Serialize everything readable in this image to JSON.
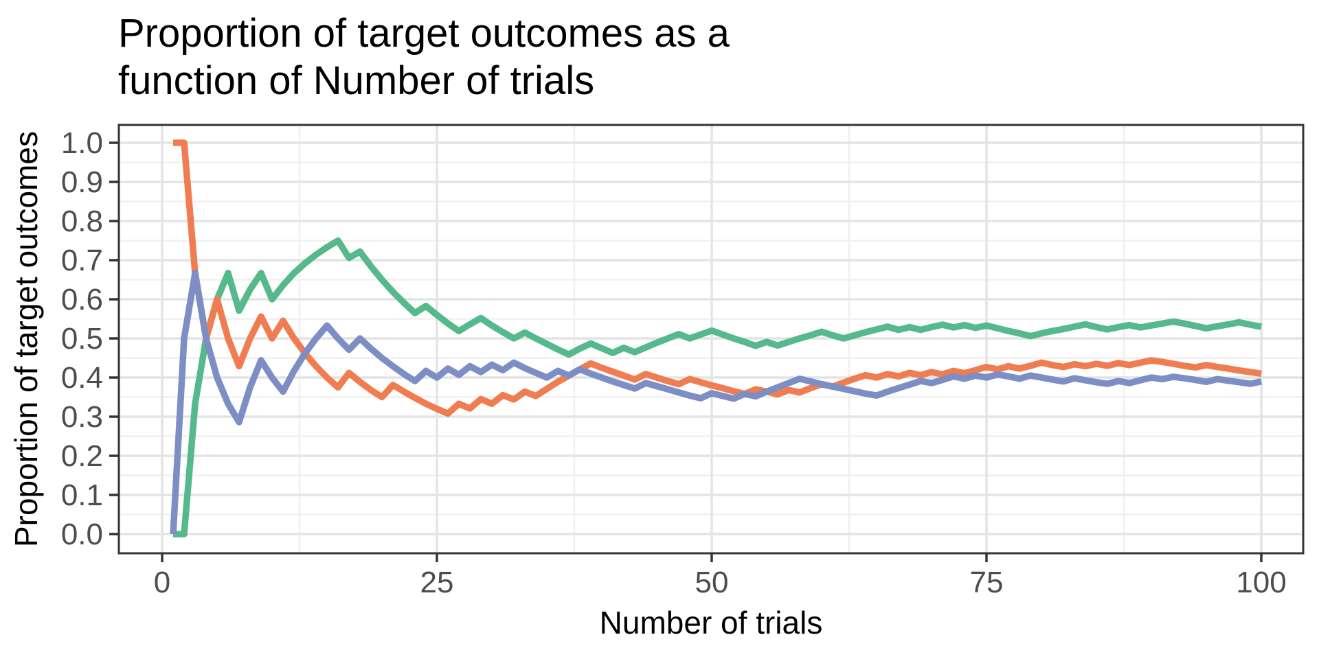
{
  "title": {
    "line1": "Proportion of target outcomes as a",
    "line2": "function of Number of trials"
  },
  "axes": {
    "x": {
      "label": "Number of trials",
      "tick_values": [
        0,
        25,
        50,
        75,
        100
      ],
      "tick_labels": [
        "0",
        "25",
        "50",
        "75",
        "100"
      ],
      "minor_ticks": [
        12.5,
        37.5,
        62.5,
        87.5
      ]
    },
    "y": {
      "label": "Proportion of target outcomes",
      "tick_values": [
        0.0,
        0.1,
        0.2,
        0.3,
        0.4,
        0.5,
        0.6,
        0.7,
        0.8,
        0.9,
        1.0
      ],
      "tick_labels": [
        "0.0",
        "0.1",
        "0.2",
        "0.3",
        "0.4",
        "0.5",
        "0.6",
        "0.7",
        "0.8",
        "0.9",
        "1.0"
      ],
      "minor_ticks": [
        0.05,
        0.15,
        0.25,
        0.35,
        0.45,
        0.55,
        0.65,
        0.75,
        0.85,
        0.95
      ]
    }
  },
  "chart_data": {
    "type": "line",
    "title": "Proportion of target outcomes as a function of Number of trials",
    "xlabel": "Number of trials",
    "ylabel": "Proportion of target outcomes",
    "xlim": [
      -4,
      104
    ],
    "ylim": [
      -0.05,
      1.05
    ],
    "grid": "major-and-minor",
    "legend": "none",
    "x": [
      1,
      2,
      3,
      4,
      5,
      6,
      7,
      8,
      9,
      10,
      11,
      12,
      13,
      14,
      15,
      16,
      17,
      18,
      19,
      20,
      21,
      22,
      23,
      24,
      25,
      26,
      27,
      28,
      29,
      30,
      31,
      32,
      33,
      34,
      35,
      36,
      37,
      38,
      39,
      40,
      41,
      42,
      43,
      44,
      45,
      46,
      47,
      48,
      49,
      50,
      51,
      52,
      53,
      54,
      55,
      56,
      57,
      58,
      59,
      60,
      61,
      62,
      63,
      64,
      65,
      66,
      67,
      68,
      69,
      70,
      71,
      72,
      73,
      74,
      75,
      76,
      77,
      78,
      79,
      80,
      81,
      82,
      83,
      84,
      85,
      86,
      87,
      88,
      89,
      90,
      91,
      92,
      93,
      94,
      95,
      96,
      97,
      98,
      99,
      100
    ],
    "series": [
      {
        "name": "green",
        "color": "#55B98C",
        "values": [
          0.0,
          0.0,
          0.333,
          0.5,
          0.6,
          0.667,
          0.571,
          0.625,
          0.667,
          0.6,
          0.636,
          0.667,
          0.692,
          0.714,
          0.733,
          0.75,
          0.706,
          0.722,
          0.684,
          0.65,
          0.619,
          0.591,
          0.565,
          0.583,
          0.56,
          0.538,
          0.519,
          0.536,
          0.552,
          0.533,
          0.516,
          0.5,
          0.515,
          0.5,
          0.486,
          0.472,
          0.459,
          0.474,
          0.487,
          0.475,
          0.463,
          0.476,
          0.465,
          0.477,
          0.489,
          0.5,
          0.511,
          0.5,
          0.51,
          0.52,
          0.51,
          0.5,
          0.491,
          0.481,
          0.491,
          0.482,
          0.491,
          0.5,
          0.508,
          0.517,
          0.508,
          0.5,
          0.508,
          0.516,
          0.523,
          0.53,
          0.522,
          0.529,
          0.522,
          0.529,
          0.535,
          0.528,
          0.534,
          0.527,
          0.533,
          0.526,
          0.519,
          0.513,
          0.506,
          0.513,
          0.519,
          0.524,
          0.53,
          0.536,
          0.529,
          0.523,
          0.529,
          0.534,
          0.528,
          0.533,
          0.538,
          0.543,
          0.538,
          0.532,
          0.526,
          0.531,
          0.536,
          0.541,
          0.535,
          0.53
        ]
      },
      {
        "name": "orange",
        "color": "#F07C52",
        "values": [
          1.0,
          1.0,
          0.667,
          0.5,
          0.6,
          0.5,
          0.429,
          0.5,
          0.556,
          0.5,
          0.545,
          0.5,
          0.462,
          0.429,
          0.4,
          0.375,
          0.412,
          0.389,
          0.368,
          0.35,
          0.381,
          0.364,
          0.348,
          0.333,
          0.32,
          0.308,
          0.333,
          0.321,
          0.345,
          0.333,
          0.355,
          0.344,
          0.364,
          0.353,
          0.371,
          0.389,
          0.405,
          0.421,
          0.436,
          0.425,
          0.415,
          0.405,
          0.395,
          0.409,
          0.4,
          0.391,
          0.383,
          0.396,
          0.388,
          0.38,
          0.373,
          0.365,
          0.358,
          0.37,
          0.364,
          0.357,
          0.368,
          0.362,
          0.373,
          0.383,
          0.377,
          0.387,
          0.397,
          0.406,
          0.4,
          0.409,
          0.403,
          0.412,
          0.406,
          0.414,
          0.408,
          0.417,
          0.411,
          0.419,
          0.427,
          0.421,
          0.429,
          0.423,
          0.43,
          0.438,
          0.432,
          0.427,
          0.434,
          0.429,
          0.435,
          0.43,
          0.437,
          0.432,
          0.438,
          0.444,
          0.44,
          0.435,
          0.43,
          0.426,
          0.432,
          0.427,
          0.423,
          0.418,
          0.414,
          0.41
        ]
      },
      {
        "name": "blue",
        "color": "#7D8EC4",
        "values": [
          0.0,
          0.5,
          0.667,
          0.5,
          0.4,
          0.333,
          0.286,
          0.375,
          0.444,
          0.4,
          0.364,
          0.417,
          0.462,
          0.5,
          0.533,
          0.5,
          0.471,
          0.5,
          0.474,
          0.45,
          0.429,
          0.409,
          0.391,
          0.417,
          0.4,
          0.423,
          0.407,
          0.429,
          0.414,
          0.433,
          0.419,
          0.438,
          0.424,
          0.412,
          0.4,
          0.417,
          0.405,
          0.421,
          0.41,
          0.4,
          0.39,
          0.381,
          0.372,
          0.386,
          0.378,
          0.37,
          0.362,
          0.354,
          0.347,
          0.36,
          0.353,
          0.346,
          0.358,
          0.352,
          0.364,
          0.375,
          0.386,
          0.397,
          0.39,
          0.383,
          0.377,
          0.371,
          0.365,
          0.359,
          0.354,
          0.364,
          0.373,
          0.382,
          0.391,
          0.386,
          0.394,
          0.403,
          0.397,
          0.405,
          0.4,
          0.408,
          0.403,
          0.397,
          0.405,
          0.4,
          0.395,
          0.39,
          0.398,
          0.393,
          0.388,
          0.384,
          0.391,
          0.386,
          0.393,
          0.4,
          0.396,
          0.402,
          0.398,
          0.394,
          0.389,
          0.396,
          0.392,
          0.388,
          0.384,
          0.39
        ]
      }
    ],
    "style": {
      "background": "#FFFFFF",
      "panel_border": "#333333",
      "grid_major": "#E4E4E4",
      "grid_minor": "#F0F0F0",
      "tick_color": "#333333",
      "tick_text_color": "#4D4D4D",
      "line_width": 9.5
    }
  }
}
